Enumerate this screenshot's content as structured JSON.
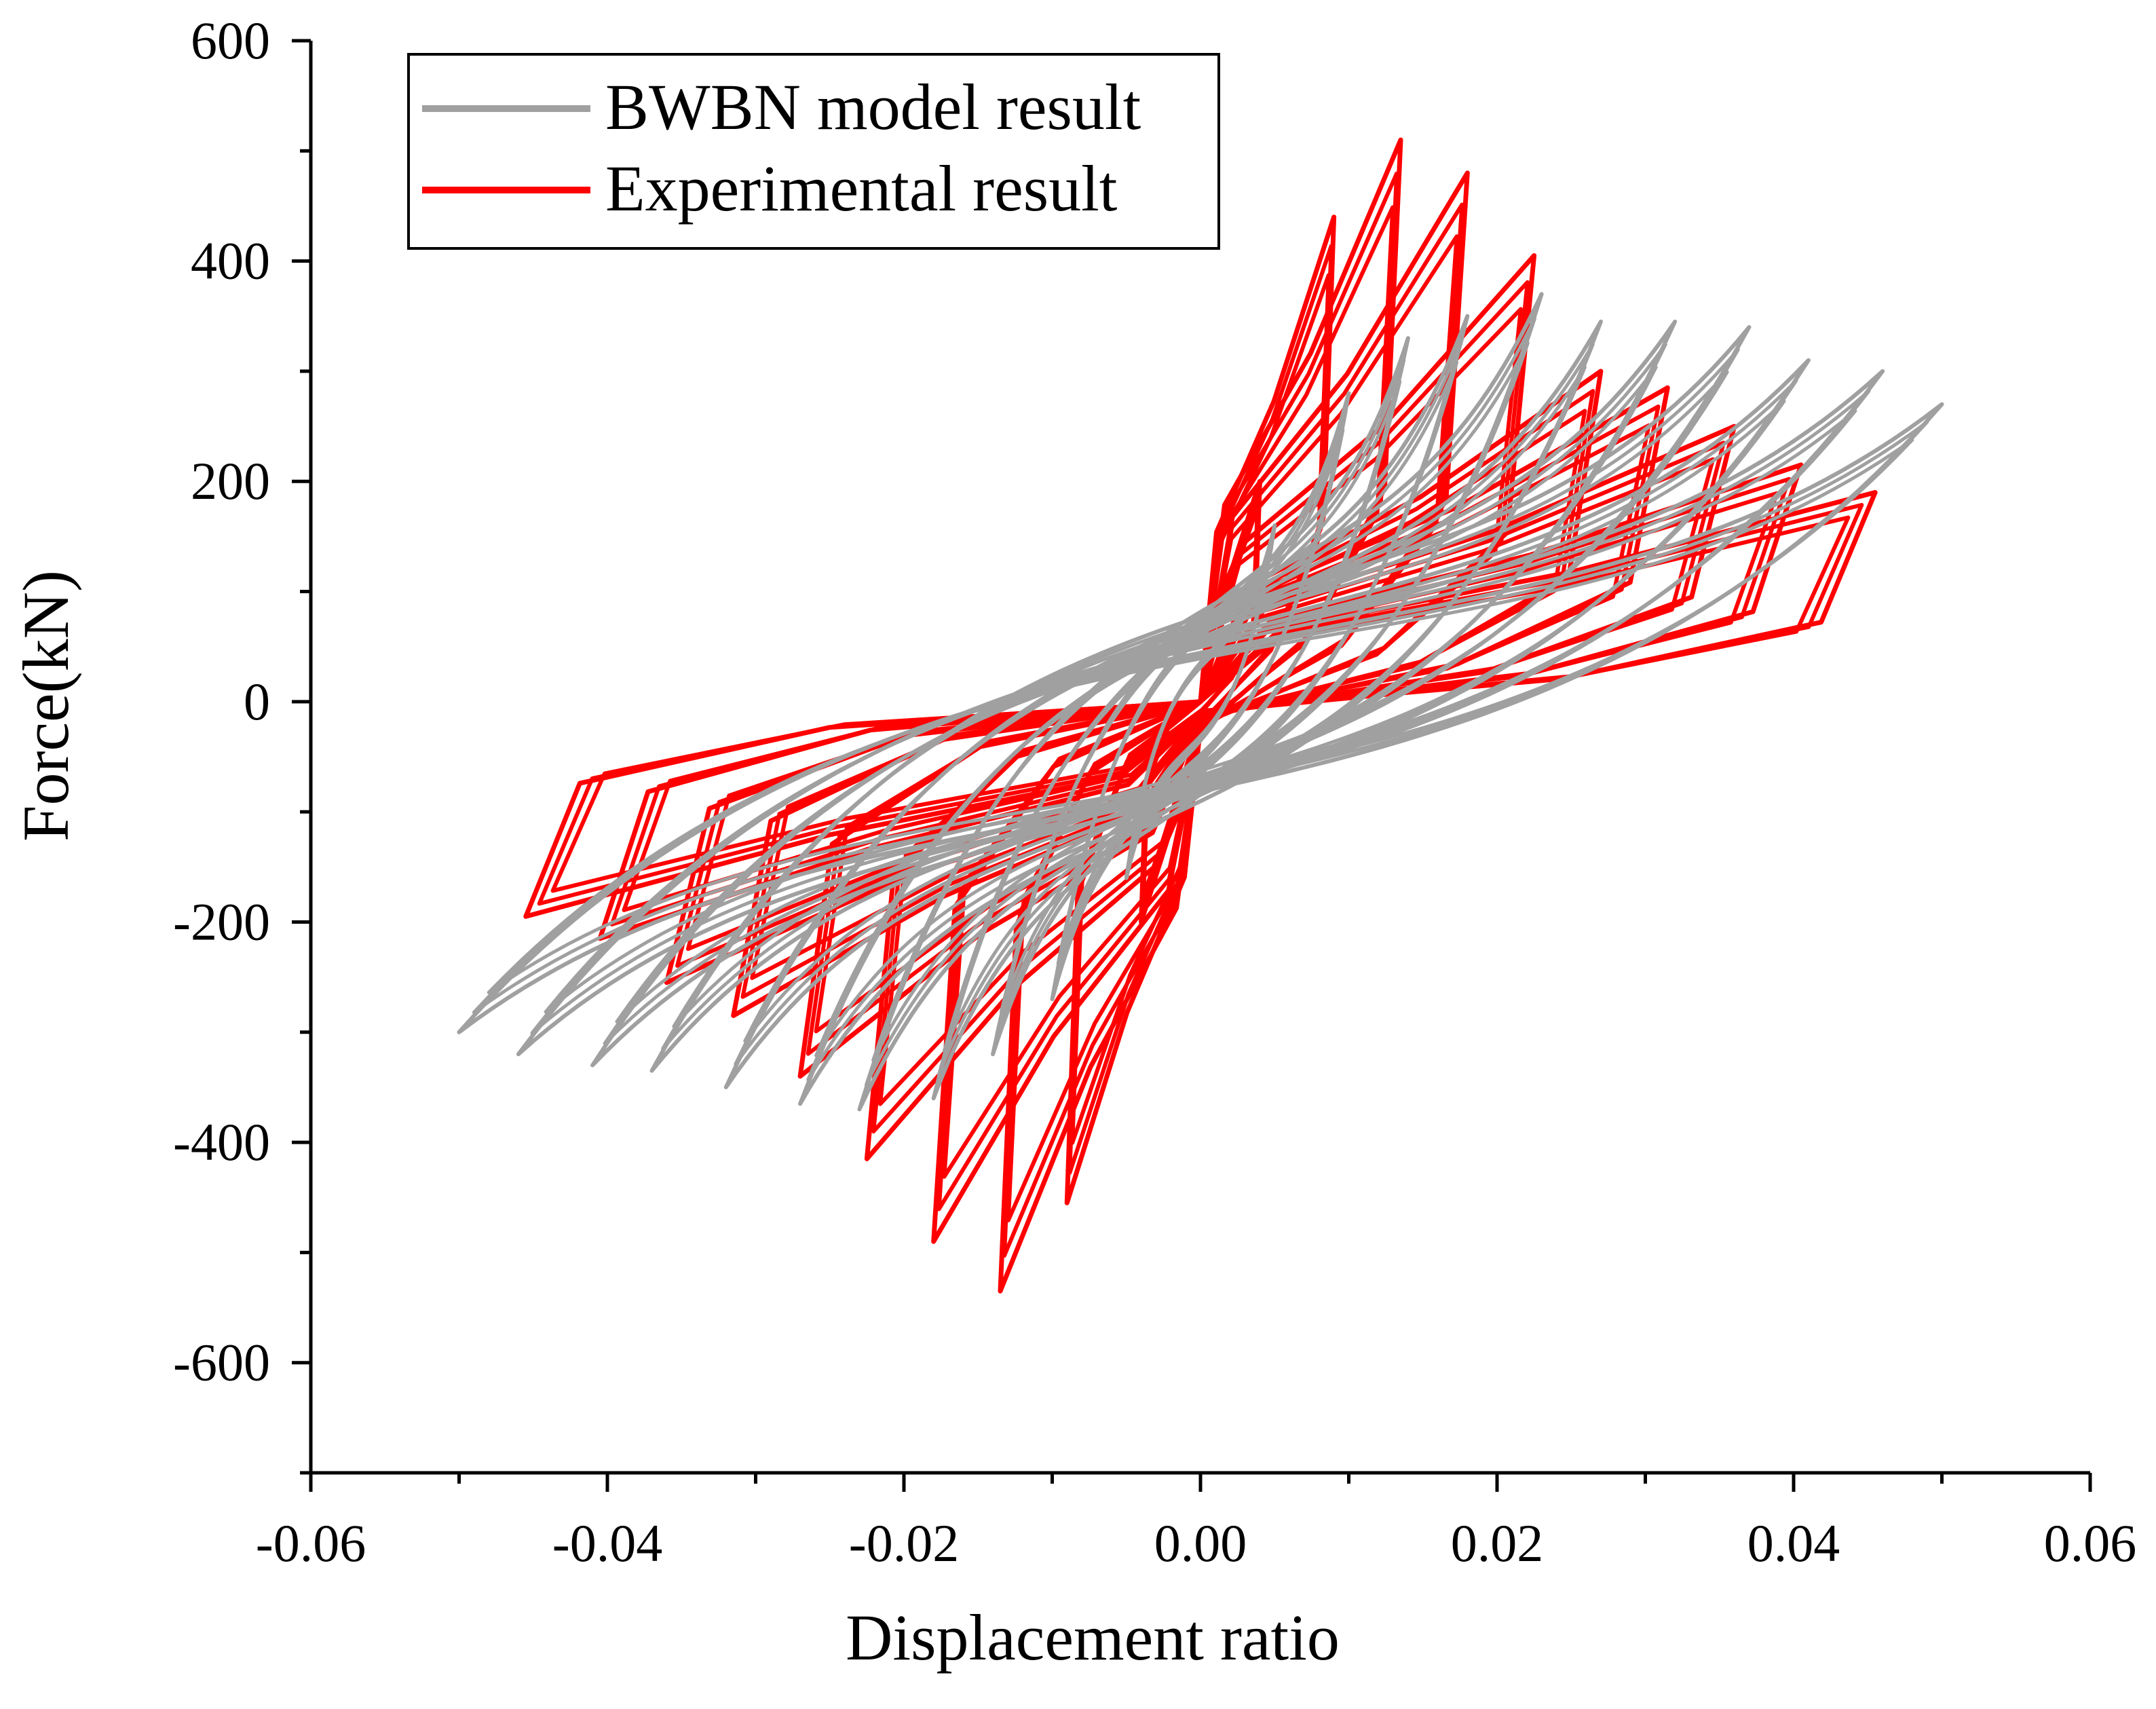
{
  "chart_data": {
    "type": "line",
    "title": "",
    "xlabel": "Displacement ratio",
    "ylabel": "Force(kN)",
    "xlim": [
      -0.06,
      0.06
    ],
    "ylim": [
      -700,
      600
    ],
    "x_ticks": [
      -0.06,
      -0.04,
      -0.02,
      0.0,
      0.02,
      0.04,
      0.06
    ],
    "x_tick_labels": [
      "-0.06",
      "-0.04",
      "-0.02",
      "0.00",
      "0.02",
      "0.04",
      "0.06"
    ],
    "y_ticks": [
      -600,
      -400,
      -200,
      0,
      200,
      400,
      600
    ],
    "y_tick_labels": [
      "-600",
      "-400",
      "-200",
      "0",
      "200",
      "400",
      "600"
    ],
    "legend_position": "top-left",
    "series": [
      {
        "name": "BWBN model result",
        "color": "#a0a0a0",
        "note": "gray hysteresis loops, cyclic loading with increasing amplitude",
        "cycles": [
          {
            "d": 0.005,
            "f_pos": 160,
            "f_neg": -160
          },
          {
            "d": 0.01,
            "f_pos": 280,
            "f_neg": -270
          },
          {
            "d": 0.014,
            "f_pos": 330,
            "f_neg": -320
          },
          {
            "d": 0.018,
            "f_pos": 350,
            "f_neg": -360
          },
          {
            "d": 0.023,
            "f_pos": 370,
            "f_neg": -370
          },
          {
            "d": 0.027,
            "f_pos": 345,
            "f_neg": -365
          },
          {
            "d": 0.032,
            "f_pos": 345,
            "f_neg": -350
          },
          {
            "d": 0.037,
            "f_pos": 340,
            "f_neg": -335
          },
          {
            "d": 0.041,
            "f_pos": 310,
            "f_neg": -330
          },
          {
            "d": 0.046,
            "f_pos": 300,
            "f_neg": -320
          },
          {
            "d": 0.05,
            "f_pos": 270,
            "f_neg": -300
          }
        ]
      },
      {
        "name": "Experimental result",
        "color": "#ff0000",
        "note": "red experimental hysteresis loops",
        "cycles": [
          {
            "d": 0.004,
            "f_pos": 200,
            "f_neg": -200
          },
          {
            "d": 0.009,
            "f_pos": 440,
            "f_neg": -455
          },
          {
            "d": 0.0135,
            "f_pos": 510,
            "f_neg": -535
          },
          {
            "d": 0.018,
            "f_pos": 480,
            "f_neg": -490
          },
          {
            "d": 0.0225,
            "f_pos": 405,
            "f_neg": -415
          },
          {
            "d": 0.027,
            "f_pos": 300,
            "f_neg": -340
          },
          {
            "d": 0.0315,
            "f_pos": 285,
            "f_neg": -285
          },
          {
            "d": 0.036,
            "f_pos": 250,
            "f_neg": -255
          },
          {
            "d": 0.0405,
            "f_pos": 215,
            "f_neg": -215
          },
          {
            "d": 0.0455,
            "f_pos": 190,
            "f_neg": -195
          }
        ]
      }
    ]
  }
}
